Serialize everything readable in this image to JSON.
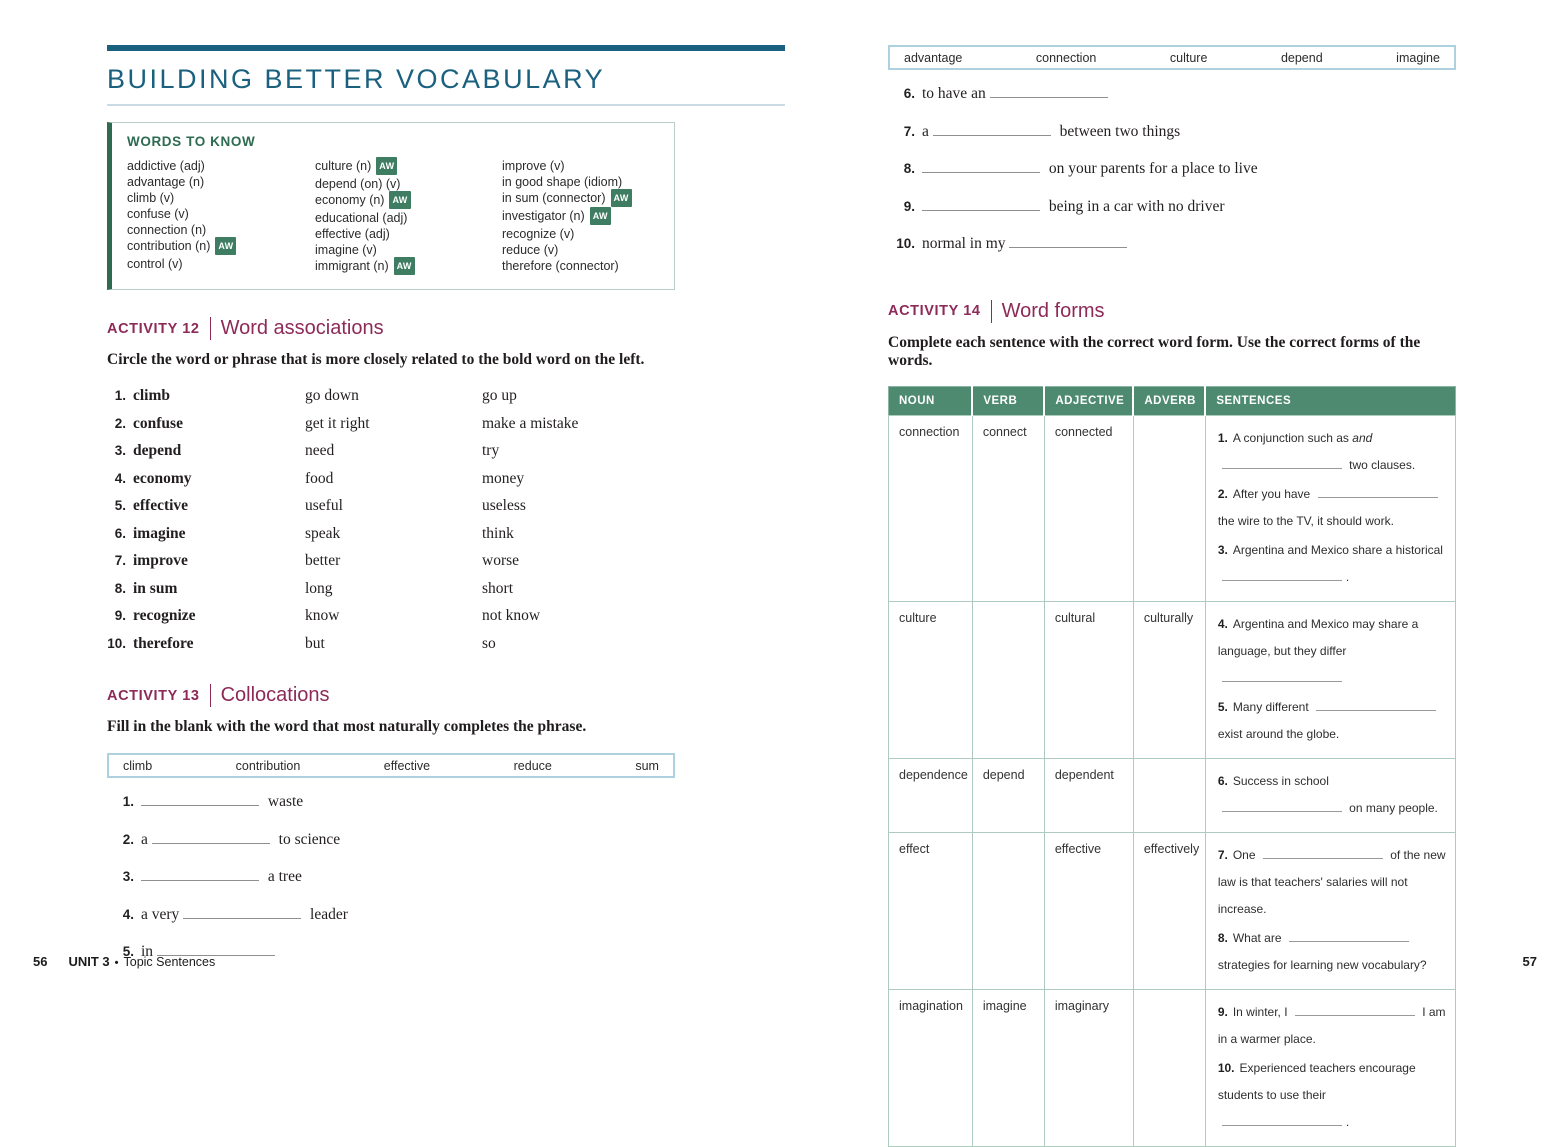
{
  "left_page": {
    "title": "BUILDING BETTER VOCABULARY",
    "words_to_know": {
      "title": "WORDS TO KNOW",
      "aw_label": "AW",
      "columns": [
        [
          {
            "text": "addictive (adj)",
            "aw": false
          },
          {
            "text": "advantage (n)",
            "aw": false
          },
          {
            "text": "climb (v)",
            "aw": false
          },
          {
            "text": "confuse (v)",
            "aw": false
          },
          {
            "text": "connection (n)",
            "aw": false
          },
          {
            "text": "contribution (n)",
            "aw": true
          },
          {
            "text": "control (v)",
            "aw": false
          }
        ],
        [
          {
            "text": "culture (n)",
            "aw": true
          },
          {
            "text": "depend (on) (v)",
            "aw": false
          },
          {
            "text": "economy (n)",
            "aw": true
          },
          {
            "text": "educational (adj)",
            "aw": false
          },
          {
            "text": "effective (adj)",
            "aw": false
          },
          {
            "text": "imagine (v)",
            "aw": false
          },
          {
            "text": "immigrant (n)",
            "aw": true
          }
        ],
        [
          {
            "text": "improve (v)",
            "aw": false
          },
          {
            "text": "in good shape (idiom)",
            "aw": false
          },
          {
            "text": "in sum (connector)",
            "aw": true
          },
          {
            "text": "investigator (n)",
            "aw": true
          },
          {
            "text": "recognize (v)",
            "aw": false
          },
          {
            "text": "reduce (v)",
            "aw": false
          },
          {
            "text": "therefore (connector)",
            "aw": false
          }
        ]
      ]
    },
    "activity_12": {
      "label": "ACTIVITY 12",
      "title": "Word associations",
      "instructions": "Circle the word or phrase that is more closely related to the bold word on the left.",
      "items": [
        {
          "num": "1.",
          "word": "climb",
          "option_a": "go down",
          "option_b": "go up"
        },
        {
          "num": "2.",
          "word": "confuse",
          "option_a": "get it right",
          "option_b": "make a mistake"
        },
        {
          "num": "3.",
          "word": "depend",
          "option_a": "need",
          "option_b": "try"
        },
        {
          "num": "4.",
          "word": "economy",
          "option_a": "food",
          "option_b": "money"
        },
        {
          "num": "5.",
          "word": "effective",
          "option_a": "useful",
          "option_b": "useless"
        },
        {
          "num": "6.",
          "word": "imagine",
          "option_a": "speak",
          "option_b": "think"
        },
        {
          "num": "7.",
          "word": "improve",
          "option_a": "better",
          "option_b": "worse"
        },
        {
          "num": "8.",
          "word": "in sum",
          "option_a": "long",
          "option_b": "short"
        },
        {
          "num": "9.",
          "word": "recognize",
          "option_a": "know",
          "option_b": "not know"
        },
        {
          "num": "10.",
          "word": "therefore",
          "option_a": "but",
          "option_b": "so"
        }
      ]
    },
    "activity_13": {
      "label": "ACTIVITY 13",
      "title": "Collocations",
      "instructions": "Fill in the blank with the word that most naturally completes the phrase.",
      "word_bank": [
        "climb",
        "contribution",
        "effective",
        "reduce",
        "sum"
      ],
      "items": [
        {
          "num": "1.",
          "before": "",
          "after": "waste"
        },
        {
          "num": "2.",
          "before": "a",
          "after": "to science"
        },
        {
          "num": "3.",
          "before": "",
          "after": "a tree"
        },
        {
          "num": "4.",
          "before": "a very",
          "after": "leader"
        },
        {
          "num": "5.",
          "before": "in",
          "after": ""
        }
      ]
    },
    "footer": {
      "page_number": "56",
      "unit_label": "UNIT 3",
      "separator": "•",
      "section": "Topic Sentences"
    }
  },
  "right_page": {
    "word_bank": [
      "advantage",
      "connection",
      "culture",
      "depend",
      "imagine"
    ],
    "fill_items": [
      {
        "num": "6.",
        "before": "to have an",
        "after": ""
      },
      {
        "num": "7.",
        "before": "a",
        "after": "between two things"
      },
      {
        "num": "8.",
        "before": "",
        "after": "on your parents for a place to live"
      },
      {
        "num": "9.",
        "before": "",
        "after": "being in a car with no driver"
      },
      {
        "num": "10.",
        "before": "normal in my",
        "after": ""
      }
    ],
    "activity_14": {
      "label": "ACTIVITY 14",
      "title": "Word forms",
      "instructions": "Complete each sentence with the correct word form. Use the correct forms of the words.",
      "table": {
        "headers": [
          "NOUN",
          "VERB",
          "ADJECTIVE",
          "ADVERB",
          "SENTENCES"
        ],
        "rows": [
          {
            "noun": "connection",
            "verb": "connect",
            "adjective": "connected",
            "adverb": "",
            "sentences": [
              {
                "num": "1.",
                "segments": [
                  {
                    "t": "A conjunction such as "
                  },
                  {
                    "i": "and"
                  },
                  {
                    "b": true
                  },
                  {
                    "t": " two clauses."
                  }
                ]
              },
              {
                "num": "2.",
                "segments": [
                  {
                    "t": "After you have "
                  },
                  {
                    "b": true
                  },
                  {
                    "t": " the wire to the TV, it should work."
                  }
                ]
              },
              {
                "num": "3.",
                "segments": [
                  {
                    "t": "Argentina and Mexico share a historical "
                  },
                  {
                    "b": true
                  },
                  {
                    "t": "."
                  }
                ]
              }
            ]
          },
          {
            "noun": "culture",
            "verb": "",
            "adjective": "cultural",
            "adverb": "culturally",
            "sentences": [
              {
                "num": "4.",
                "segments": [
                  {
                    "t": "Argentina and Mexico may share a language, but they differ "
                  },
                  {
                    "b": true
                  }
                ]
              },
              {
                "num": "5.",
                "segments": [
                  {
                    "t": "Many different "
                  },
                  {
                    "b": true
                  },
                  {
                    "t": " exist around the globe."
                  }
                ]
              }
            ]
          },
          {
            "noun": "dependence",
            "verb": "depend",
            "adjective": "dependent",
            "adverb": "",
            "sentences": [
              {
                "num": "6.",
                "segments": [
                  {
                    "t": "Success in school "
                  },
                  {
                    "b": true
                  },
                  {
                    "t": " on many people."
                  }
                ]
              }
            ]
          },
          {
            "noun": "effect",
            "verb": "",
            "adjective": "effective",
            "adverb": "effectively",
            "sentences": [
              {
                "num": "7.",
                "segments": [
                  {
                    "t": "One "
                  },
                  {
                    "b": true
                  },
                  {
                    "t": " of the new law is that teachers' salaries will not increase."
                  }
                ]
              },
              {
                "num": "8.",
                "segments": [
                  {
                    "t": "What are "
                  },
                  {
                    "b": true
                  },
                  {
                    "t": " strategies for learning new vocabulary?"
                  }
                ]
              }
            ]
          },
          {
            "noun": "imagination",
            "verb": "imagine",
            "adjective": "imaginary",
            "adverb": "",
            "sentences": [
              {
                "num": "9.",
                "segments": [
                  {
                    "t": "In winter, I "
                  },
                  {
                    "b": true
                  },
                  {
                    "t": " I am in a warmer place."
                  }
                ]
              },
              {
                "num": "10.",
                "segments": [
                  {
                    "t": "Experienced teachers encourage students to use their "
                  },
                  {
                    "b": true
                  },
                  {
                    "t": "."
                  }
                ]
              }
            ]
          }
        ]
      }
    },
    "footer": {
      "page_number": "57"
    }
  },
  "colors": {
    "title_teal": "#1b617f",
    "green_dark": "#2e6b50",
    "aw_badge_green": "#3f7d63",
    "table_header_green": "#4d8a6f",
    "activity_burgundy": "#8d2a58",
    "bank_border_blue": "#aed1df",
    "table_border_green": "#aecbbf"
  }
}
